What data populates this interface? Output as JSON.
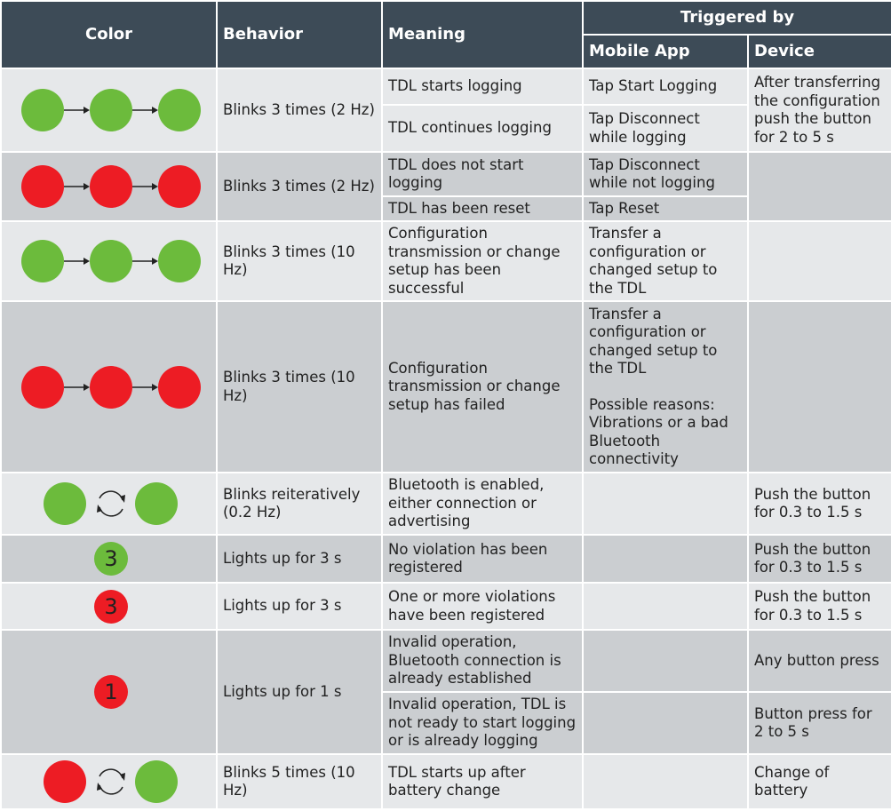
{
  "header": {
    "color": "Color",
    "behavior": "Behavior",
    "meaning": "Meaning",
    "triggered_by": "Triggered by",
    "mobile_app": "Mobile App",
    "device": "Device"
  },
  "rows": [
    {
      "behavior": "Blinks 3 times (2 Hz)",
      "entries": [
        {
          "meaning": "TDL starts logging",
          "mobile_app": "Tap Start Logging"
        },
        {
          "meaning": "TDL continues logging",
          "mobile_app": "Tap Disconnect while logging"
        }
      ],
      "device": "After transferring the configuration push the button for 2 to 5 s"
    },
    {
      "behavior": "Blinks 3 times (2 Hz)",
      "entries": [
        {
          "meaning": "TDL does not start logging",
          "mobile_app": "Tap Disconnect while not logging"
        },
        {
          "meaning": "TDL has been reset",
          "mobile_app": "Tap Reset"
        }
      ]
    },
    {
      "behavior": "Blinks 3 times (10 Hz)",
      "entries": [
        {
          "meaning": "Configuration transmission or change setup  has been successful",
          "mobile_app": "Transfer a configuration or changed setup to the TDL"
        }
      ]
    },
    {
      "behavior": "Blinks 3 times (10 Hz)",
      "entries": [
        {
          "meaning": "Configuration transmission or change setup has failed",
          "mobile_app": [
            "Transfer a configuration or changed setup to the TDL",
            "Possible reasons: Vibrations or a bad Bluetooth connectivity"
          ]
        }
      ]
    },
    {
      "behavior": "Blinks reiteratively (0.2 Hz)",
      "entries": [
        {
          "meaning": "Bluetooth is enabled, either connection or advertising"
        }
      ],
      "device": "Push the button for 0.3 to 1.5 s"
    },
    {
      "icon_digit": "3",
      "behavior": "Lights up for 3 s",
      "entries": [
        {
          "meaning": "No violation has been registered"
        }
      ],
      "device": "Push the button for 0.3 to 1.5 s"
    },
    {
      "icon_digit": "3",
      "behavior": "Lights up for 3 s",
      "entries": [
        {
          "meaning": "One or more violations have been registered"
        }
      ],
      "device": "Push the button for 0.3 to 1.5 s"
    },
    {
      "icon_digit": "1",
      "behavior": "Lights up for 1 s",
      "entries": [
        {
          "meaning": "Invalid operation, Bluetooth connection is already established",
          "device": "Any button press"
        },
        {
          "meaning": "Invalid operation, TDL is not ready to start logging or is already logging",
          "device": "Button press for 2 to 5 s"
        }
      ]
    },
    {
      "behavior": "Blinks 5 times (10 Hz)",
      "entries": [
        {
          "meaning": "TDL starts up after battery change"
        }
      ],
      "device": "Change of battery"
    }
  ]
}
